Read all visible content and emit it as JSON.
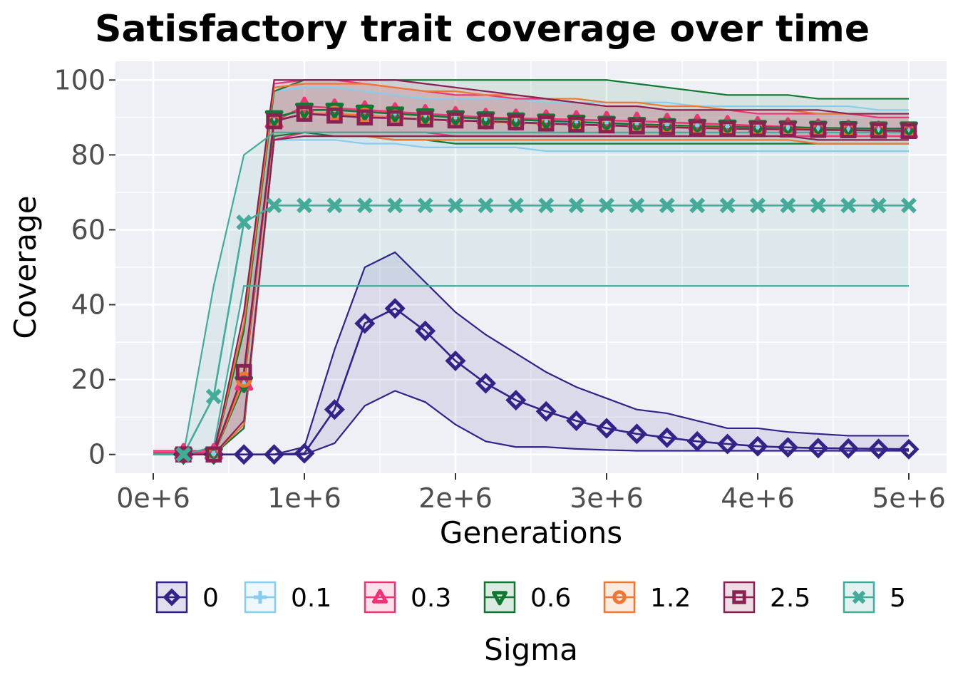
{
  "chart_data": {
    "type": "line",
    "title": "Satisfactory trait coverage over time",
    "xlabel": "Generations",
    "ylabel": "Coverage",
    "xlim": [
      -250000,
      5250000
    ],
    "ylim": [
      -5,
      105
    ],
    "x_ticks": [
      0,
      1000000,
      2000000,
      3000000,
      4000000,
      5000000
    ],
    "x_tick_labels": [
      "0e+6",
      "1e+6",
      "2e+6",
      "3e+6",
      "4e+6",
      "5e+6"
    ],
    "y_ticks": [
      0,
      20,
      40,
      60,
      80,
      100
    ],
    "y_tick_labels": [
      "0",
      "20",
      "40",
      "60",
      "80",
      "100"
    ],
    "grid": true,
    "panel_background": "#EEF0F5",
    "legend_title": "Sigma",
    "legend_position": "bottom",
    "x": [
      200000,
      400000,
      600000,
      800000,
      1000000,
      1200000,
      1400000,
      1600000,
      1800000,
      2000000,
      2200000,
      2400000,
      2600000,
      2800000,
      3000000,
      3200000,
      3400000,
      3600000,
      3800000,
      4000000,
      4200000,
      4400000,
      4600000,
      4800000,
      5000000
    ],
    "series": [
      {
        "name": "0",
        "color": "#332288",
        "marker": "diamond",
        "values": [
          0,
          0,
          0,
          0,
          0.3,
          12,
          35,
          39,
          33,
          25,
          19,
          14.5,
          11.5,
          9,
          7,
          5.5,
          4.5,
          3.5,
          2.8,
          2.2,
          1.9,
          1.7,
          1.6,
          1.5,
          1.4
        ],
        "lower": [
          0,
          0,
          0,
          0,
          0,
          3,
          13,
          17,
          14,
          8,
          3.5,
          2,
          2,
          1.5,
          1.2,
          1,
          1,
          1,
          1,
          1,
          1,
          1,
          1,
          1,
          1
        ],
        "upper": [
          0,
          0,
          0,
          0,
          2,
          28,
          50,
          54,
          46,
          38,
          32,
          27,
          22,
          18,
          15,
          12,
          11,
          9,
          7,
          7,
          6,
          5.5,
          5,
          5,
          5
        ]
      },
      {
        "name": "0.1",
        "color": "#88CCEE",
        "marker": "plus",
        "values": [
          0,
          0,
          20,
          89,
          91,
          90.5,
          90,
          89.8,
          89.5,
          89.3,
          89,
          88.8,
          88.5,
          88.3,
          88,
          87.8,
          87.6,
          87.4,
          87.2,
          87,
          86.8,
          86.7,
          86.6,
          86.5,
          86.4
        ],
        "lower": [
          0,
          0,
          8,
          84,
          84,
          84,
          83,
          83,
          82,
          82,
          82,
          82,
          81,
          81,
          81,
          81,
          81,
          81,
          81,
          81,
          81,
          81,
          81,
          81,
          81
        ],
        "upper": [
          0,
          0,
          35,
          97,
          98,
          98,
          97,
          96,
          95,
          95,
          95,
          95,
          94,
          94,
          94,
          94,
          94,
          93,
          93,
          93,
          93,
          93,
          93,
          92,
          92
        ]
      },
      {
        "name": "0.3",
        "color": "#EE3377",
        "marker": "triangle",
        "values": [
          0.5,
          0.5,
          19,
          89,
          93,
          92.5,
          92,
          91.5,
          91,
          90.5,
          90,
          89.8,
          89.6,
          89.4,
          89.2,
          89,
          88.7,
          88.4,
          88.1,
          87.8,
          87.5,
          87.2,
          86.9,
          86.6,
          86.3
        ],
        "lower": [
          0,
          0,
          7,
          84,
          86,
          86,
          86,
          86,
          86,
          85,
          85,
          85,
          85,
          85,
          85,
          85,
          85,
          85,
          85,
          85,
          85,
          85,
          85,
          85,
          85
        ],
        "upper": [
          1,
          1,
          34,
          99,
          100,
          100,
          99,
          98,
          97,
          96,
          96,
          95,
          95,
          94,
          93,
          93,
          92,
          92,
          92,
          91,
          91,
          91,
          91,
          90,
          90
        ]
      },
      {
        "name": "0.6",
        "color": "#117733",
        "marker": "triangle-down",
        "values": [
          0,
          0,
          19,
          90,
          92,
          92,
          91.5,
          91,
          90.5,
          90,
          89.7,
          89.4,
          89.1,
          88.8,
          88.5,
          88.2,
          87.9,
          87.7,
          87.5,
          87.4,
          87.3,
          87.2,
          87.1,
          87,
          87
        ],
        "lower": [
          0,
          0,
          7,
          85,
          86,
          85,
          85,
          84,
          84,
          83,
          83,
          83,
          83,
          83,
          83,
          83,
          83,
          83,
          83,
          83,
          83,
          83,
          83,
          83,
          83
        ],
        "upper": [
          0,
          0,
          33,
          97,
          100,
          100,
          100,
          100,
          100,
          100,
          100,
          100,
          100,
          100,
          100,
          99,
          98,
          97,
          96,
          96,
          96,
          95,
          95,
          95,
          95
        ]
      },
      {
        "name": "1.2",
        "color": "#EE7733",
        "marker": "circle",
        "values": [
          0,
          0,
          20,
          89,
          91,
          91,
          90.5,
          90,
          89.5,
          89.2,
          88.9,
          88.6,
          88.3,
          88.1,
          87.9,
          87.7,
          87.5,
          87.3,
          87.1,
          87,
          86.9,
          86.8,
          86.7,
          86.6,
          86.5
        ],
        "lower": [
          0,
          0,
          8,
          84,
          85,
          85,
          85,
          84,
          84,
          84,
          84,
          84,
          84,
          84,
          84,
          84,
          84,
          84,
          84,
          84,
          84,
          83,
          83,
          83,
          83
        ],
        "upper": [
          0,
          0,
          35,
          98,
          99,
          99,
          99,
          98,
          97,
          97,
          96,
          96,
          95,
          95,
          94,
          94,
          93,
          93,
          92,
          92,
          92,
          91,
          91,
          91,
          91
        ]
      },
      {
        "name": "2.5",
        "color": "#882255",
        "marker": "square",
        "values": [
          0,
          0,
          22,
          89,
          91,
          90.5,
          90,
          89.8,
          89.5,
          89.2,
          89,
          88.7,
          88.4,
          88.1,
          87.9,
          87.6,
          87.4,
          87.2,
          87,
          86.9,
          86.8,
          86.7,
          86.6,
          86.5,
          86.4
        ],
        "lower": [
          0,
          0,
          9,
          84,
          85,
          85,
          85,
          85,
          85,
          85,
          85,
          85,
          85,
          85,
          85,
          85,
          85,
          85,
          85,
          85,
          85,
          84,
          84,
          84,
          84
        ],
        "upper": [
          0,
          0,
          38,
          100,
          100,
          100,
          100,
          100,
          99,
          98,
          97,
          96,
          95,
          94,
          93,
          93,
          92,
          92,
          92,
          92,
          92,
          92,
          91,
          91,
          91
        ]
      },
      {
        "name": "5",
        "color": "#44AA99",
        "marker": "x",
        "values": [
          0,
          15.5,
          62,
          66.5,
          66.5,
          66.5,
          66.5,
          66.5,
          66.5,
          66.5,
          66.5,
          66.5,
          66.5,
          66.5,
          66.5,
          66.5,
          66.5,
          66.5,
          66.5,
          66.5,
          66.5,
          66.5,
          66.5,
          66.5,
          66.5
        ],
        "lower": [
          0,
          2,
          45,
          45,
          45,
          45,
          45,
          45,
          45,
          45,
          45,
          45,
          45,
          45,
          45,
          45,
          45,
          45,
          45,
          45,
          45,
          45,
          45,
          45,
          45
        ],
        "upper": [
          0,
          45,
          80,
          86,
          86,
          86,
          86,
          86,
          86,
          86,
          86,
          86,
          86,
          86,
          86,
          86,
          86,
          86,
          86,
          86,
          86,
          86,
          86,
          86,
          86
        ]
      }
    ]
  }
}
